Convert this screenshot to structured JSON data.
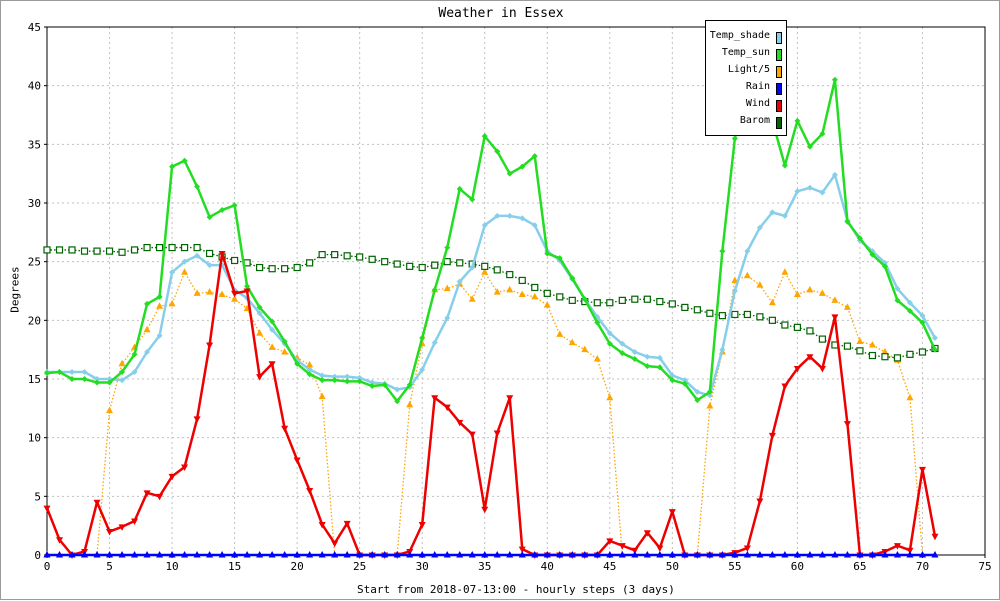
{
  "chart_data": {
    "type": "line",
    "title": "Weather in Essex",
    "xlabel": "Start from 2018-07-13:00 - hourly steps (3 days)",
    "ylabel": "Degrees",
    "xlim": [
      0,
      75
    ],
    "ylim": [
      0,
      45
    ],
    "x_ticks": [
      0,
      5,
      10,
      15,
      20,
      25,
      30,
      35,
      40,
      45,
      50,
      55,
      60,
      65,
      70,
      75
    ],
    "y_ticks": [
      0,
      5,
      10,
      15,
      20,
      25,
      30,
      35,
      40,
      45
    ],
    "grid": true,
    "legend_position": "top-right",
    "x": [
      0,
      1,
      2,
      3,
      4,
      5,
      6,
      7,
      8,
      9,
      10,
      11,
      12,
      13,
      14,
      15,
      16,
      17,
      18,
      19,
      20,
      21,
      22,
      23,
      24,
      25,
      26,
      27,
      28,
      29,
      30,
      31,
      32,
      33,
      34,
      35,
      36,
      37,
      38,
      39,
      40,
      41,
      42,
      43,
      44,
      45,
      46,
      47,
      48,
      49,
      50,
      51,
      52,
      53,
      54,
      55,
      56,
      57,
      58,
      59,
      60,
      61,
      62,
      63,
      64,
      65,
      66,
      67,
      68,
      69,
      70,
      71
    ],
    "series": [
      {
        "name": "Temp_shade",
        "color": "#87ceeb",
        "marker": "diamond",
        "style": "solid",
        "values": [
          15.6,
          15.6,
          15.6,
          15.6,
          15.0,
          15.0,
          14.9,
          15.6,
          17.3,
          18.7,
          24.1,
          25.0,
          25.5,
          24.7,
          24.7,
          22.6,
          21.9,
          20.6,
          19.2,
          18.0,
          16.6,
          15.8,
          15.3,
          15.2,
          15.2,
          15.1,
          14.7,
          14.6,
          14.1,
          14.3,
          15.8,
          18.1,
          20.2,
          23.3,
          24.5,
          28.1,
          28.9,
          28.9,
          28.7,
          28.1,
          25.9,
          25.1,
          23.5,
          21.8,
          20.3,
          18.9,
          18.0,
          17.3,
          16.9,
          16.8,
          15.3,
          14.9,
          13.9,
          13.6,
          17.5,
          22.5,
          25.9,
          27.9,
          29.2,
          28.9,
          31.0,
          31.3,
          30.9,
          32.4,
          28.5,
          26.8,
          25.9,
          24.9,
          22.7,
          21.5,
          20.4,
          18.5
        ]
      },
      {
        "name": "Temp_sun",
        "color": "#22dd22",
        "marker": "diamond",
        "style": "solid",
        "values": [
          15.5,
          15.6,
          15.0,
          15.0,
          14.7,
          14.7,
          15.6,
          17.1,
          21.4,
          22.0,
          33.1,
          33.6,
          31.4,
          28.8,
          29.4,
          29.8,
          22.9,
          21.1,
          19.9,
          18.2,
          16.3,
          15.4,
          14.9,
          14.9,
          14.8,
          14.8,
          14.4,
          14.5,
          13.1,
          14.5,
          18.5,
          22.6,
          26.2,
          31.2,
          30.3,
          35.7,
          34.4,
          32.5,
          33.1,
          34.0,
          25.7,
          25.3,
          23.6,
          21.8,
          19.8,
          18.0,
          17.2,
          16.7,
          16.1,
          16.0,
          14.9,
          14.6,
          13.2,
          13.9,
          25.9,
          35.5,
          40.5,
          40.0,
          37.0,
          33.2,
          37.0,
          34.8,
          35.9,
          40.5,
          28.4,
          27.0,
          25.6,
          24.6,
          21.7,
          20.8,
          19.8,
          17.5
        ]
      },
      {
        "name": "Light/5",
        "color": "#ffa500",
        "marker": "triangle-up",
        "style": "dotted",
        "values": [
          0,
          0,
          0,
          0,
          0,
          12.3,
          16.3,
          17.7,
          19.2,
          21.2,
          21.4,
          24.1,
          22.3,
          22.4,
          22.2,
          21.8,
          21.0,
          18.9,
          17.7,
          17.3,
          16.8,
          16.2,
          13.5,
          0,
          0,
          0,
          0,
          0,
          0,
          12.8,
          18.0,
          22.6,
          22.7,
          23.1,
          21.8,
          24.1,
          22.4,
          22.6,
          22.2,
          22.0,
          21.3,
          18.8,
          18.1,
          17.5,
          16.7,
          13.4,
          0,
          0,
          0,
          0,
          0,
          0,
          0,
          12.7,
          17.3,
          23.4,
          23.8,
          23.0,
          21.5,
          24.1,
          22.2,
          22.6,
          22.3,
          21.7,
          21.1,
          18.2,
          17.9,
          17.3,
          16.6,
          13.4,
          0,
          0
        ]
      },
      {
        "name": "Rain",
        "color": "#0000ff",
        "marker": "triangle-up",
        "style": "solid",
        "values": [
          0,
          0,
          0,
          0,
          0,
          0,
          0,
          0,
          0,
          0,
          0,
          0,
          0,
          0,
          0,
          0,
          0,
          0,
          0,
          0,
          0,
          0,
          0,
          0,
          0,
          0,
          0,
          0,
          0,
          0,
          0,
          0,
          0,
          0,
          0,
          0,
          0,
          0,
          0,
          0,
          0,
          0,
          0,
          0,
          0,
          0,
          0,
          0,
          0,
          0,
          0,
          0,
          0,
          0,
          0,
          0,
          0,
          0,
          0,
          0,
          0,
          0,
          0,
          0,
          0,
          0,
          0,
          0,
          0,
          0,
          0,
          0
        ]
      },
      {
        "name": "Wind",
        "color": "#ee0000",
        "marker": "triangle-down",
        "style": "solid",
        "values": [
          4.0,
          1.3,
          0.0,
          0.3,
          4.5,
          2.0,
          2.4,
          2.9,
          5.3,
          5.0,
          6.7,
          7.5,
          11.6,
          17.9,
          25.7,
          22.3,
          22.5,
          15.2,
          16.3,
          10.8,
          8.1,
          5.5,
          2.6,
          1.0,
          2.7,
          0.0,
          0.0,
          0.0,
          0.0,
          0.3,
          2.6,
          13.4,
          12.6,
          11.3,
          10.3,
          3.9,
          10.4,
          13.4,
          0.5,
          0.0,
          0.0,
          0.0,
          0.0,
          0.0,
          0.0,
          1.2,
          0.8,
          0.4,
          1.9,
          0.6,
          3.7,
          0.0,
          0.0,
          0.0,
          0.0,
          0.2,
          0.6,
          4.6,
          10.2,
          14.4,
          15.9,
          16.9,
          15.9,
          20.3,
          11.2,
          0.0,
          0.0,
          0.3,
          0.8,
          0.4,
          7.3,
          1.6
        ]
      },
      {
        "name": "Barom",
        "color": "#006400",
        "marker": "square",
        "style": "dotted",
        "values": [
          26.0,
          26.0,
          26.0,
          25.9,
          25.9,
          25.9,
          25.8,
          26.0,
          26.2,
          26.2,
          26.2,
          26.2,
          26.2,
          25.7,
          25.4,
          25.1,
          24.9,
          24.5,
          24.4,
          24.4,
          24.5,
          24.9,
          25.6,
          25.6,
          25.5,
          25.4,
          25.2,
          25.0,
          24.8,
          24.6,
          24.5,
          24.7,
          25.0,
          24.9,
          24.8,
          24.6,
          24.3,
          23.9,
          23.4,
          22.8,
          22.3,
          22.0,
          21.7,
          21.6,
          21.5,
          21.5,
          21.7,
          21.8,
          21.8,
          21.6,
          21.4,
          21.1,
          20.9,
          20.6,
          20.4,
          20.5,
          20.5,
          20.3,
          20.0,
          19.6,
          19.4,
          19.1,
          18.4,
          17.9,
          17.8,
          17.4,
          17.0,
          16.9,
          16.8,
          17.1,
          17.3,
          17.6
        ]
      }
    ],
    "legend": [
      "Temp_shade",
      "Temp_sun",
      "Light/5",
      "Rain",
      "Wind",
      "Barom"
    ]
  }
}
